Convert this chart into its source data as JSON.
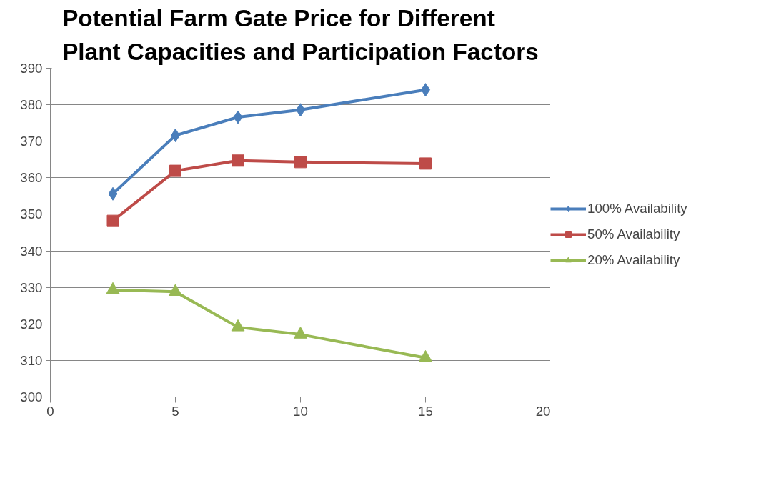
{
  "chart_data": {
    "type": "line",
    "title": "Potential Farm Gate Price for Different\nPlant Capacities and Participation Factors",
    "x": [
      2.5,
      5,
      7.5,
      10,
      15
    ],
    "series": [
      {
        "name": "100% Availability",
        "color": "#4a7ebb",
        "marker": "diamond",
        "values": [
          355.6,
          371.6,
          376.6,
          378.6,
          384.1
        ]
      },
      {
        "name": "50% Availability",
        "color": "#be4b48",
        "marker": "square",
        "values": [
          348.2,
          361.9,
          364.7,
          364.3,
          363.9
        ]
      },
      {
        "name": "20% Availability",
        "color": "#98b954",
        "marker": "triangle",
        "values": [
          329.3,
          328.8,
          319.1,
          317.1,
          310.7
        ]
      }
    ],
    "xlim": [
      0,
      20
    ],
    "xticks": [
      0,
      5,
      10,
      15,
      20
    ],
    "ylim": [
      300,
      390
    ],
    "yticks": [
      300,
      310,
      320,
      330,
      340,
      350,
      360,
      370,
      380,
      390
    ],
    "grid": "y",
    "legend": "right"
  }
}
